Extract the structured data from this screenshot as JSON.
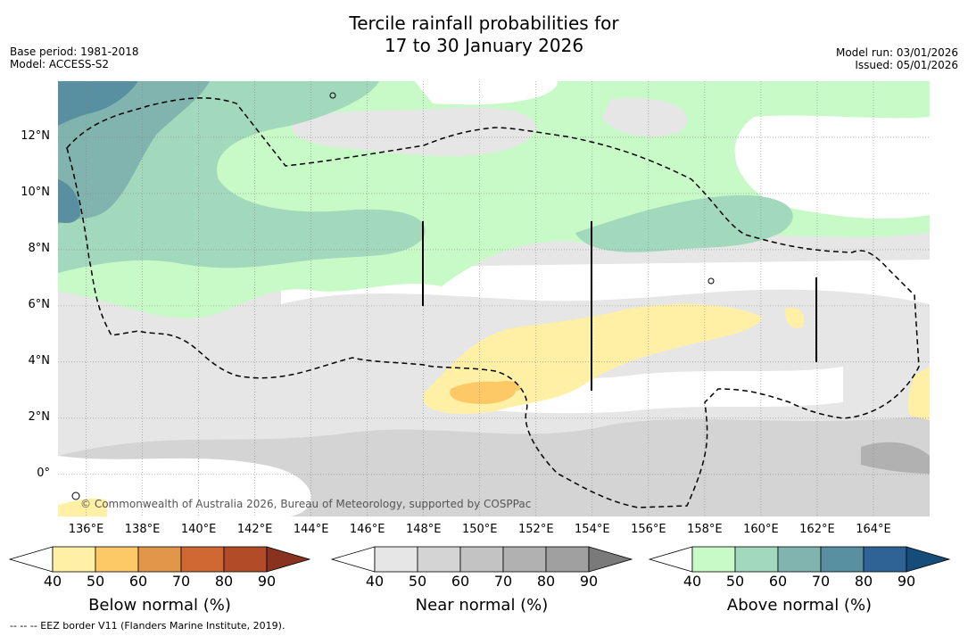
{
  "title": {
    "line1": "Tercile rainfall probabilities for",
    "line2": "17 to 30 January 2026"
  },
  "meta_left": {
    "base_period": "Base period: 1981-2018",
    "model": "Model: ACCESS-S2"
  },
  "meta_right": {
    "model_run": "Model run: 03/01/2026",
    "issued": "Issued: 05/01/2026"
  },
  "copyright": "© Commonwealth of Australia 2026, Bureau of Meteorology, supported by COSPPac",
  "footnote": "--  --  -- EEZ border V11 (Flanders Marine Institute, 2019).",
  "chart_data": {
    "type": "heatmap",
    "lat_labels": [
      "12°N",
      "10°N",
      "8°N",
      "6°N",
      "4°N",
      "2°N",
      "0°"
    ],
    "lat_values": [
      12,
      10,
      8,
      6,
      4,
      2,
      0
    ],
    "lon_labels": [
      "136°E",
      "138°E",
      "140°E",
      "142°E",
      "144°E",
      "146°E",
      "148°E",
      "150°E",
      "152°E",
      "154°E",
      "156°E",
      "158°E",
      "160°E",
      "162°E",
      "164°E"
    ],
    "lon_values": [
      136,
      138,
      140,
      142,
      144,
      146,
      148,
      150,
      152,
      154,
      156,
      158,
      160,
      162,
      164
    ],
    "lon_range": [
      135,
      166
    ],
    "lat_range": [
      -1.5,
      14
    ],
    "colorbars": [
      {
        "title": "Below normal (%)",
        "ticks": [
          "40",
          "50",
          "60",
          "70",
          "80",
          "90"
        ],
        "colors": [
          "#fff0a5",
          "#fdc966",
          "#e2964a",
          "#d06834",
          "#b14b28",
          "#8a3220"
        ]
      },
      {
        "title": "Near normal (%)",
        "ticks": [
          "40",
          "50",
          "60",
          "70",
          "80",
          "90"
        ],
        "colors": [
          "#e6e6e6",
          "#d4d4d4",
          "#c3c3c3",
          "#b1b1b1",
          "#a0a0a0",
          "#7a7a7a"
        ]
      },
      {
        "title": "Above normal (%)",
        "ticks": [
          "40",
          "50",
          "60",
          "70",
          "80",
          "90"
        ],
        "colors": [
          "#c8fac8",
          "#a2d8bb",
          "#81b4af",
          "#5890a1",
          "#2f6395",
          "#154c7a"
        ]
      }
    ],
    "regions": [
      {
        "category": "above",
        "level": "40-50",
        "description": "northern band and western Pacific north of ~6N"
      },
      {
        "category": "above",
        "level": "50-60",
        "description": "west 135-148E north of 7N, 152-162E 7-9N"
      },
      {
        "category": "above",
        "level": "60-70",
        "description": "far northwest corner"
      },
      {
        "category": "near",
        "level": "40-50",
        "description": "broad equatorial band 0-6N"
      },
      {
        "category": "near",
        "level": "50-60",
        "description": "southern and eastern equatorial zone"
      },
      {
        "category": "below",
        "level": "40-50",
        "description": "149-161E around 3-5N"
      },
      {
        "category": "below",
        "level": "50-60",
        "description": "~149-151E near 2.5N"
      }
    ]
  }
}
